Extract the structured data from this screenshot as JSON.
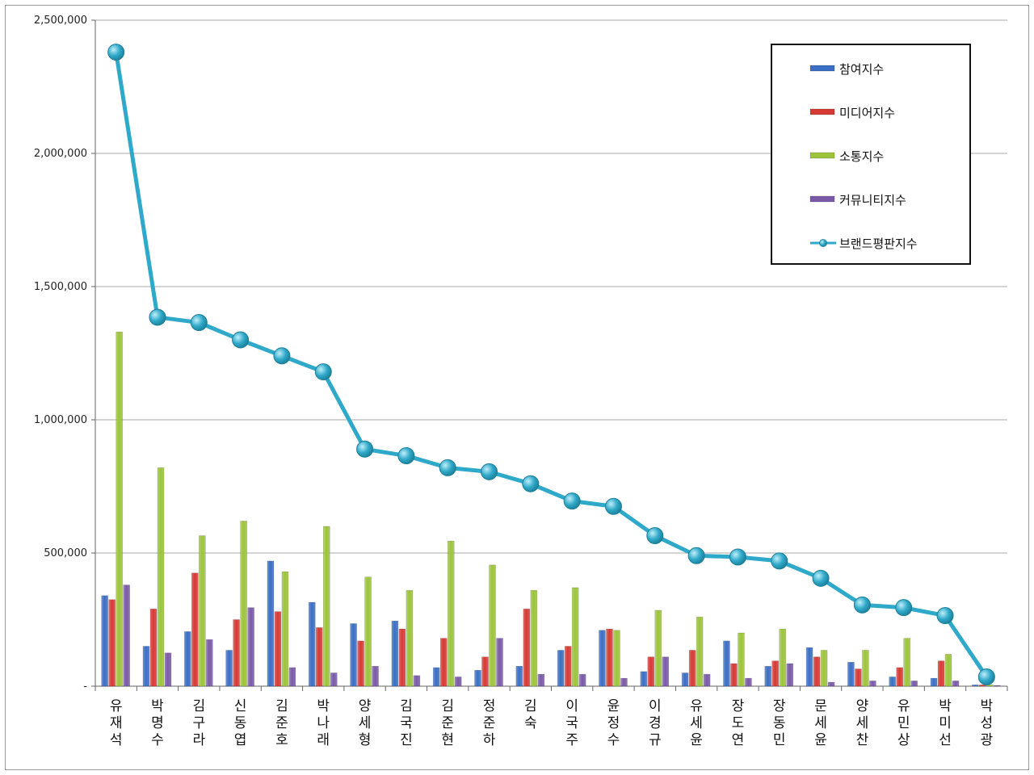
{
  "chart_data": {
    "type": "bar",
    "title": "",
    "xlabel": "",
    "ylabel": "",
    "ylim": [
      0,
      2500000
    ],
    "yticks": [
      0,
      500000,
      1000000,
      1500000,
      2000000,
      2500000
    ],
    "ytick_labels": [
      "-",
      "500,000",
      "1,000,000",
      "1,500,000",
      "2,000,000",
      "2,500,000"
    ],
    "grid": true,
    "legend_position": "top-right",
    "categories": [
      "유재석",
      "박명수",
      "김구라",
      "신동엽",
      "김준호",
      "박나래",
      "양세형",
      "김국진",
      "김준현",
      "정준하",
      "김숙",
      "이국주",
      "윤정수",
      "이경규",
      "유세윤",
      "장도연",
      "장동민",
      "문세윤",
      "양세찬",
      "유민상",
      "박미선",
      "박성광"
    ],
    "series": [
      {
        "name": "참여지수",
        "kind": "bar",
        "color": "#3b6fc4",
        "values": [
          340000,
          150000,
          205000,
          135000,
          470000,
          315000,
          235000,
          245000,
          70000,
          60000,
          75000,
          135000,
          210000,
          55000,
          50000,
          170000,
          75000,
          145000,
          90000,
          35000,
          30000,
          5000
        ]
      },
      {
        "name": "미디어지수",
        "kind": "bar",
        "color": "#d63a35",
        "values": [
          325000,
          290000,
          425000,
          250000,
          280000,
          220000,
          170000,
          215000,
          180000,
          110000,
          290000,
          150000,
          215000,
          110000,
          135000,
          85000,
          95000,
          110000,
          65000,
          70000,
          95000,
          5000
        ]
      },
      {
        "name": "소통지수",
        "kind": "bar",
        "color": "#9cc43a",
        "values": [
          1330000,
          820000,
          565000,
          620000,
          430000,
          600000,
          410000,
          360000,
          545000,
          455000,
          360000,
          370000,
          210000,
          285000,
          260000,
          200000,
          215000,
          135000,
          135000,
          180000,
          120000,
          5000
        ]
      },
      {
        "name": "커뮤니티지수",
        "kind": "bar",
        "color": "#7a5aa8",
        "values": [
          380000,
          125000,
          175000,
          295000,
          70000,
          50000,
          75000,
          40000,
          35000,
          180000,
          45000,
          45000,
          30000,
          110000,
          45000,
          30000,
          85000,
          15000,
          20000,
          20000,
          20000,
          3000
        ]
      },
      {
        "name": "브랜드평판지수",
        "kind": "line",
        "color": "#2fa9c9",
        "values": [
          2380000,
          1385000,
          1365000,
          1300000,
          1240000,
          1180000,
          890000,
          865000,
          820000,
          805000,
          760000,
          695000,
          675000,
          565000,
          490000,
          485000,
          470000,
          405000,
          305000,
          295000,
          265000,
          35000
        ]
      }
    ]
  }
}
